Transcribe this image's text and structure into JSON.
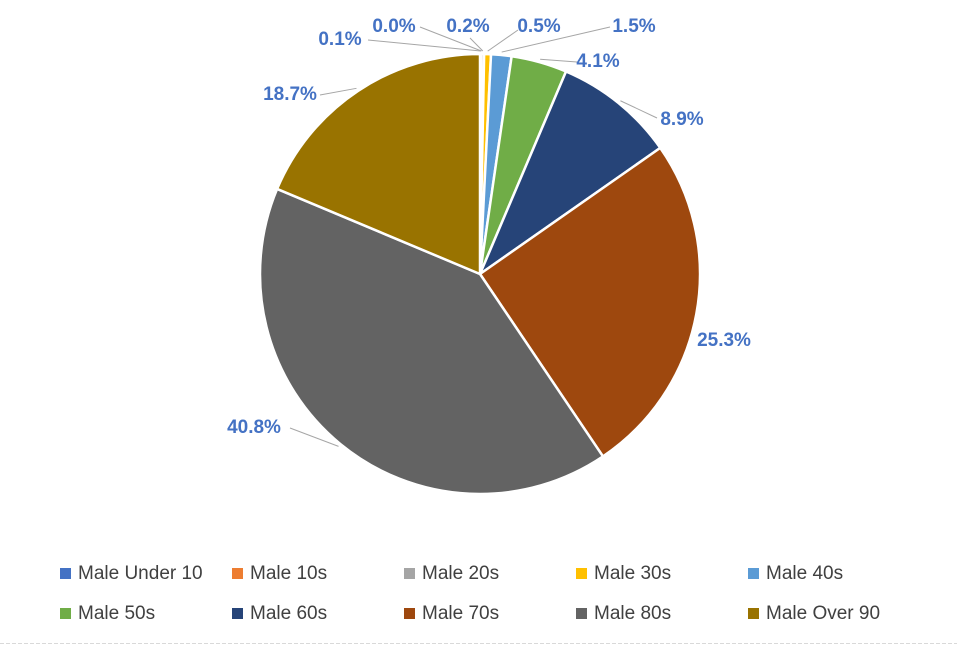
{
  "chart_data": {
    "type": "pie",
    "title": "",
    "label_color": "#4472C4",
    "legend_position": "bottom",
    "slices": [
      {
        "label": "Male Under 10",
        "value": 0.1,
        "display": "0.1%",
        "color": "#4472C4"
      },
      {
        "label": "Male 10s",
        "value": 0.0,
        "display": "0.0%",
        "color": "#ED7D31"
      },
      {
        "label": "Male 20s",
        "value": 0.2,
        "display": "0.2%",
        "color": "#A5A5A5"
      },
      {
        "label": "Male 30s",
        "value": 0.5,
        "display": "0.5%",
        "color": "#FFC000"
      },
      {
        "label": "Male 40s",
        "value": 1.5,
        "display": "1.5%",
        "color": "#5B9BD5"
      },
      {
        "label": "Male 50s",
        "value": 4.1,
        "display": "4.1%",
        "color": "#70AD47"
      },
      {
        "label": "Male 60s",
        "value": 8.9,
        "display": "8.9%",
        "color": "#264478"
      },
      {
        "label": "Male 70s",
        "value": 25.3,
        "display": "25.3%",
        "color": "#9E480E"
      },
      {
        "label": "Male 80s",
        "value": 40.8,
        "display": "40.8%",
        "color": "#636363"
      },
      {
        "label": "Male Over 90",
        "value": 18.7,
        "display": "18.7%",
        "color": "#997300"
      }
    ]
  }
}
